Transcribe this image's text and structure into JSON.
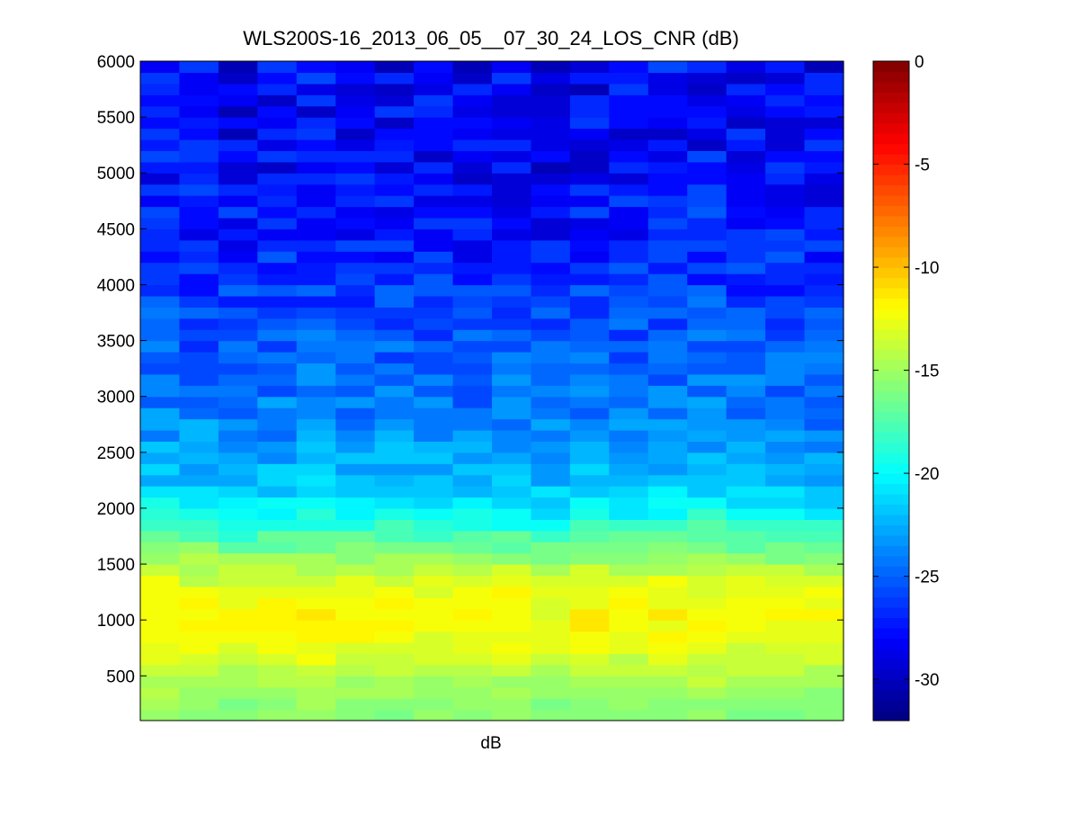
{
  "chart_data": {
    "type": "heatmap",
    "title": "WLS200S-16_2013_06_05__07_30_24_LOS_CNR (dB)",
    "xlabel": "dB",
    "ylabel": "",
    "ylim": [
      100,
      6000
    ],
    "y_ticks": [
      500,
      1000,
      1500,
      2000,
      2500,
      3000,
      3500,
      4000,
      4500,
      5000,
      5500,
      6000
    ],
    "x_ticks": [],
    "colormap": "jet",
    "colorbar": {
      "clim": [
        -32,
        0
      ],
      "ticks": [
        -30,
        -25,
        -20,
        -15,
        -10,
        -5,
        0
      ],
      "levels": 64
    },
    "grid": false,
    "columns": 18,
    "range_bins": 59,
    "profile": {
      "range": [
        100,
        300,
        500,
        700,
        900,
        1000,
        1100,
        1300,
        1500,
        1700,
        1900,
        2000,
        2100,
        2200,
        2300,
        2500,
        2700,
        3000,
        3500,
        4000,
        4500,
        5000,
        5500,
        6000
      ],
      "cnr": [
        -16,
        -15.5,
        -14.5,
        -13.2,
        -12.3,
        -12,
        -12.2,
        -13,
        -14.8,
        -17,
        -19.3,
        -20.3,
        -21,
        -21.6,
        -22.2,
        -23,
        -23.6,
        -24.4,
        -25.4,
        -26.4,
        -27.2,
        -28.0,
        -28.3,
        -28.0
      ]
    },
    "column_offset_db": [
      0.3,
      0.2,
      -0.1,
      0.1,
      0.4,
      0.0,
      0.2,
      0.0,
      -0.2,
      0.1,
      -0.3,
      0.2,
      0.0,
      0.3,
      0.4,
      0.1,
      0.0,
      -0.2
    ],
    "noise_amplitude_db": [
      0.5,
      2.2
    ]
  }
}
